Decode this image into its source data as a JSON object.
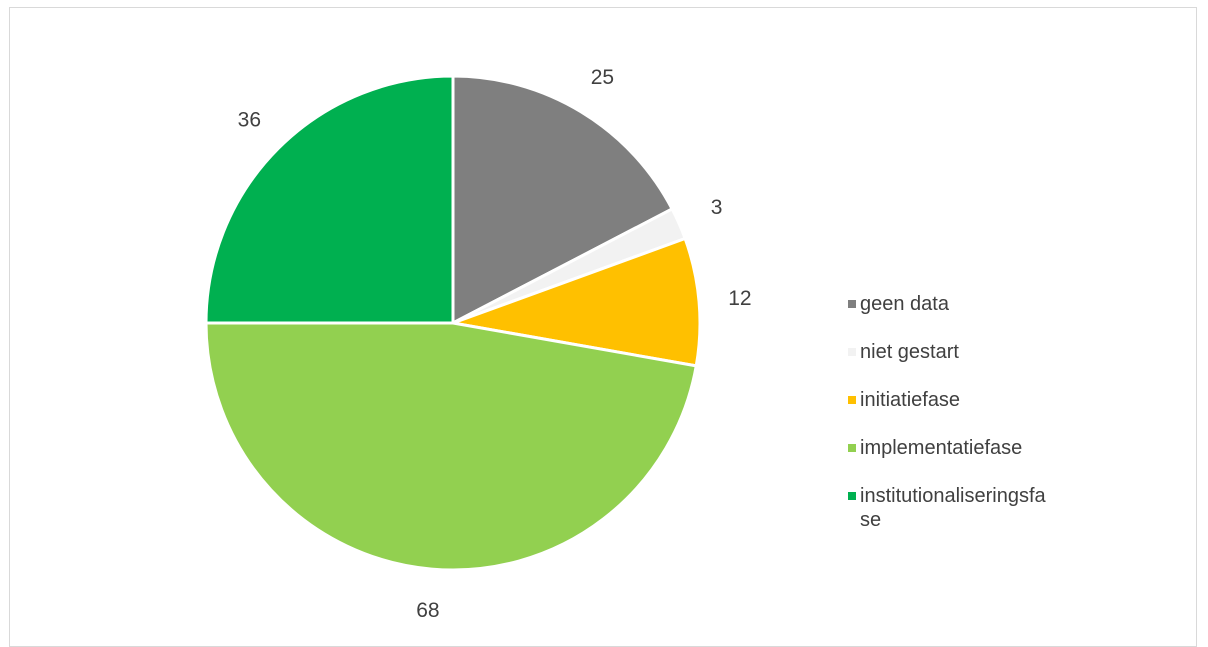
{
  "chart_data": {
    "type": "pie",
    "categories": [
      "geen data",
      "niet gestart",
      "initiatiefase",
      "implementatiefase",
      "institutionaliseringsfase"
    ],
    "values": [
      25,
      3,
      12,
      68,
      36
    ],
    "colors": [
      "#7f7f7f",
      "#f2f2f2",
      "#ffc000",
      "#92d050",
      "#00b050"
    ],
    "data_labels": [
      "25",
      "3",
      "12",
      "68",
      "36"
    ],
    "start_angle_deg": 0,
    "direction": "clockwise",
    "legend_position": "right"
  },
  "legend": {
    "items": [
      {
        "label": "geen data",
        "color": "#7f7f7f"
      },
      {
        "label": "niet gestart",
        "color": "#f2f2f2"
      },
      {
        "label": "initiatiefase",
        "color": "#ffc000"
      },
      {
        "label": "implementatiefase",
        "color": "#92d050"
      },
      {
        "label": "institutionaliseringsfa se",
        "color": "#00b050"
      }
    ]
  }
}
